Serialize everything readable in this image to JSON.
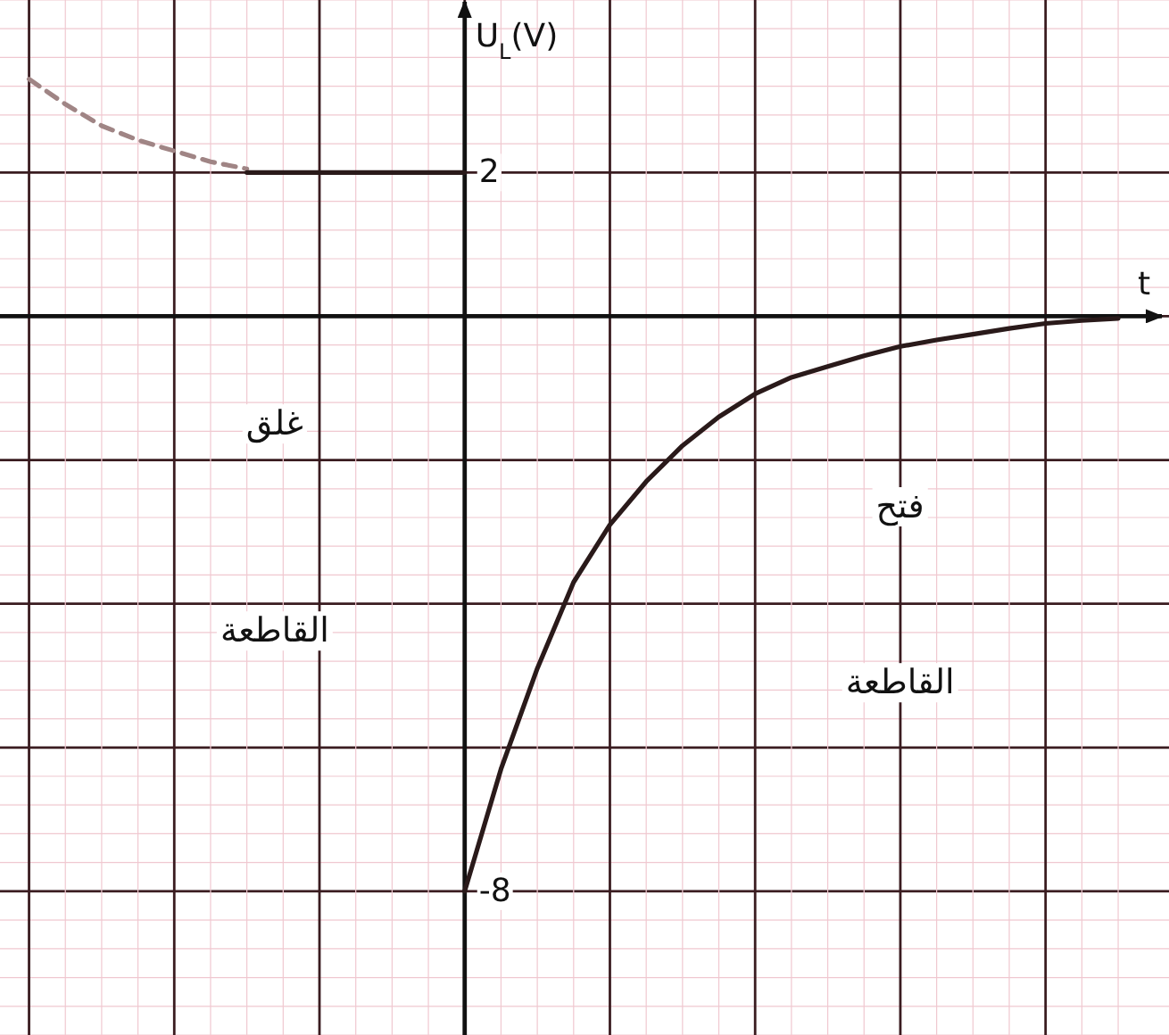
{
  "chart_data": {
    "type": "line",
    "xlabel": "t",
    "ylabel": "U$_{L}$(V)",
    "categories": [
      null,
      null,
      null,
      null,
      null,
      null,
      null,
      null,
      null,
      null,
      null,
      null,
      null,
      null,
      null,
      null,
      null,
      null,
      null,
      null,
      null,
      null,
      null,
      null,
      null,
      null,
      null,
      null,
      null,
      null,
      null
    ],
    "ylim": [
      -10,
      4.4
    ],
    "yticks": [
      {
        "value": -8,
        "label": "-8"
      },
      {
        "value": -6,
        "label": null
      },
      {
        "value": -4,
        "label": null
      },
      {
        "value": -2,
        "label": null
      },
      {
        "value": 0,
        "label": null
      },
      {
        "value": 2,
        "label": "2"
      }
    ],
    "tick_labels": "y",
    "grid": true,
    "marker": "none",
    "series": [
      {
        "color": "#a08585",
        "line_style": "dashed",
        "values": [
          3.3,
          2.95,
          2.65,
          2.45,
          2.3,
          2.15,
          2.05,
          null,
          null,
          null,
          null,
          null,
          null,
          null,
          null,
          null,
          null,
          null,
          null,
          null,
          null,
          null,
          null,
          null,
          null,
          null,
          null,
          null,
          null,
          null,
          null
        ]
      },
      {
        "color": "#2a1a1a",
        "line_style": "solid",
        "values": [
          null,
          null,
          null,
          null,
          null,
          null,
          2,
          2,
          2,
          2,
          2,
          2,
          2,
          null,
          null,
          null,
          null,
          null,
          null,
          null,
          null,
          null,
          null,
          null,
          null,
          null,
          null,
          null,
          null,
          null,
          null
        ]
      },
      {
        "color": "#2a1a1a",
        "line_style": "solid",
        "values": [
          null,
          null,
          null,
          null,
          null,
          null,
          null,
          null,
          null,
          null,
          null,
          null,
          -8,
          -6.3,
          -4.9,
          -3.7,
          -2.9,
          -2.3,
          -1.8,
          -1.4,
          -1.08,
          -0.85,
          -0.7,
          -0.55,
          -0.42,
          -0.33,
          -0.25,
          -0.17,
          -0.1,
          -0.06,
          -0.03
        ]
      }
    ],
    "annotations": [
      "غلق",
      "القاطعة",
      "فتح",
      "القاطعة"
    ]
  }
}
